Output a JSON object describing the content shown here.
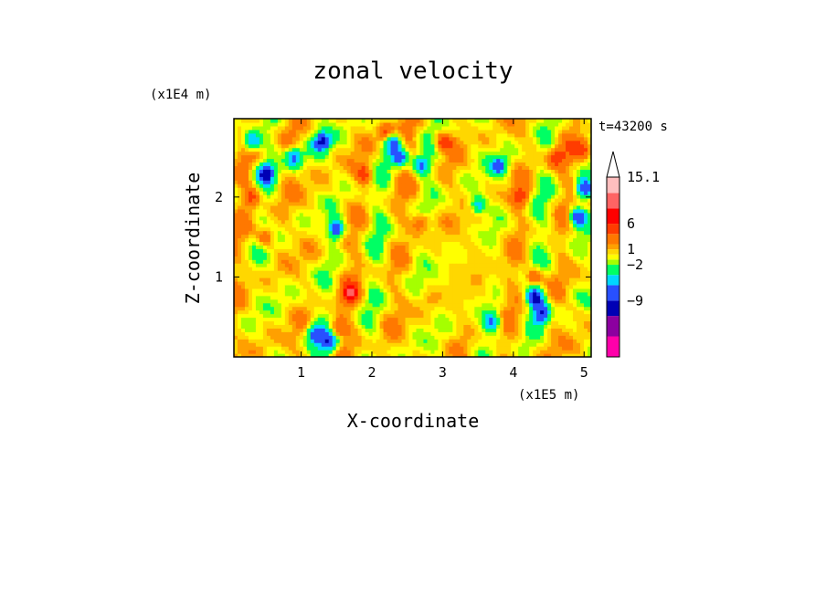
{
  "chart_data": {
    "type": "heatmap",
    "title": "zonal velocity",
    "xlabel": "X-coordinate",
    "ylabel": "Z-coordinate",
    "x_scale_label": "(x1E5 m)",
    "y_scale_label": "(x1E4 m)",
    "time_label": "t=43200 s",
    "xlim": [
      0.05,
      5.1
    ],
    "ylim": [
      0,
      2.98
    ],
    "x_ticks": [
      "1",
      "2",
      "3",
      "4",
      "5"
    ],
    "x_tick_values": [
      1,
      2,
      3,
      4,
      5
    ],
    "y_ticks": [
      "1",
      "2"
    ],
    "y_tick_values": [
      1,
      2
    ],
    "colorbar": {
      "levels": [
        -20,
        -16,
        -12,
        -9,
        -6,
        -4,
        -2,
        -1,
        0,
        1,
        2,
        4,
        6,
        9,
        12,
        15.1
      ],
      "colors": [
        "#ff00aa",
        "#c800a0",
        "#8c00a0",
        "#0000b4",
        "#2850ff",
        "#00d7ff",
        "#00ff64",
        "#a5ff00",
        "#ffff00",
        "#ffd700",
        "#ffa000",
        "#ff7800",
        "#ff3c00",
        "#ff0000",
        "#ff6464",
        "#ffbebe",
        "#ffffff"
      ],
      "labels": [
        "15.1",
        "6",
        "1",
        "−2",
        "−9"
      ],
      "label_values": [
        15.1,
        6,
        1,
        -2,
        -9
      ],
      "extend": "max"
    },
    "field_blobs": [
      {
        "x": 0.3,
        "z": 2.7,
        "v": -8
      },
      {
        "x": 0.5,
        "z": 2.3,
        "v": -9
      },
      {
        "x": 0.9,
        "z": 2.5,
        "v": -8
      },
      {
        "x": 1.3,
        "z": 2.7,
        "v": -9
      },
      {
        "x": 1.5,
        "z": 1.6,
        "v": -9
      },
      {
        "x": 2.3,
        "z": 2.7,
        "v": -8
      },
      {
        "x": 2.4,
        "z": 2.5,
        "v": -7
      },
      {
        "x": 2.7,
        "z": 2.4,
        "v": -7
      },
      {
        "x": 3.5,
        "z": 1.9,
        "v": -6
      },
      {
        "x": 3.8,
        "z": 2.4,
        "v": -6
      },
      {
        "x": 4.3,
        "z": 0.75,
        "v": -10
      },
      {
        "x": 4.4,
        "z": 0.55,
        "v": -9
      },
      {
        "x": 4.9,
        "z": 1.75,
        "v": -9
      },
      {
        "x": 5.0,
        "z": 2.1,
        "v": -8
      },
      {
        "x": 1.4,
        "z": 0.2,
        "v": -8
      },
      {
        "x": 1.2,
        "z": 0.3,
        "v": -7
      },
      {
        "x": 3.7,
        "z": 0.45,
        "v": -6
      },
      {
        "x": 0.3,
        "z": 2.0,
        "v": 5
      },
      {
        "x": 0.5,
        "z": 1.5,
        "v": 5
      },
      {
        "x": 1.7,
        "z": 0.8,
        "v": 6
      },
      {
        "x": 1.9,
        "z": 2.3,
        "v": 5
      },
      {
        "x": 2.2,
        "z": 2.8,
        "v": 6
      },
      {
        "x": 2.7,
        "z": 1.7,
        "v": 5
      },
      {
        "x": 3.0,
        "z": 2.7,
        "v": 6
      },
      {
        "x": 4.1,
        "z": 2.0,
        "v": 5
      },
      {
        "x": 4.3,
        "z": 1.0,
        "v": 6
      },
      {
        "x": 4.6,
        "z": 2.5,
        "v": 5
      },
      {
        "x": 5.0,
        "z": 2.6,
        "v": 5
      },
      {
        "x": 1.5,
        "z": 0.35,
        "v": 5
      },
      {
        "x": 3.5,
        "z": 1.0,
        "v": 1
      },
      {
        "x": 3.6,
        "z": 0.85,
        "v": 1
      },
      {
        "x": 2.8,
        "z": 0.7,
        "v": 1
      },
      {
        "x": 4.9,
        "z": 0.55,
        "v": 1
      }
    ]
  }
}
